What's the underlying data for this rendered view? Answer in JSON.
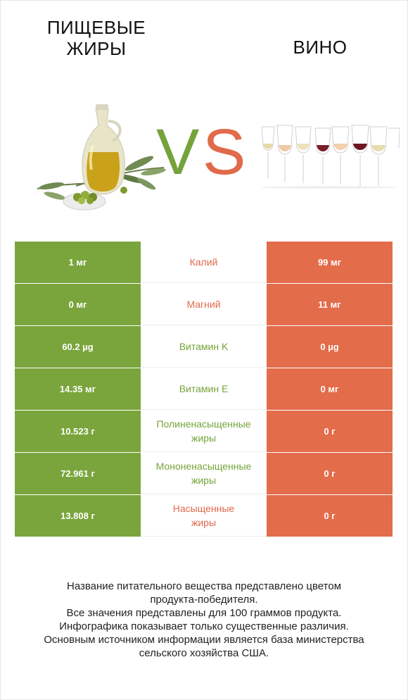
{
  "header": {
    "left_title": "ПИЩЕВЫЕ\nЖИРЫ",
    "right_title": "ВИНО",
    "vs_v": "V",
    "vs_s": "S"
  },
  "colors": {
    "left_accent": "#7aa53c",
    "right_accent": "#e36c4b"
  },
  "rows": [
    {
      "left": "1 мг",
      "label": "Калий",
      "right": "99 мг",
      "winner": "right"
    },
    {
      "left": "0 мг",
      "label": "Магний",
      "right": "11 мг",
      "winner": "right"
    },
    {
      "left": "60.2 µg",
      "label": "Витамин K",
      "right": "0 µg",
      "winner": "left"
    },
    {
      "left": "14.35 мг",
      "label": "Витамин E",
      "right": "0 мг",
      "winner": "left"
    },
    {
      "left": "10.523 г",
      "label": "Полиненасыщенные\nжиры",
      "right": "0 г",
      "winner": "left"
    },
    {
      "left": "72.961 г",
      "label": "Мононенасыщенные\nжиры",
      "right": "0 г",
      "winner": "left"
    },
    {
      "left": "13.808 г",
      "label": "Насыщенные\nжиры",
      "right": "0 г",
      "winner": "right"
    }
  ],
  "footnote": {
    "line1": "Название питательного вещества представлено цветом",
    "line2": "продукта-победителя.",
    "line3": "Все значения представлены для 100 граммов продукта.",
    "line4": "Инфографика показывает только существенные различия.",
    "line5": "Основным источником информации является база министерства",
    "line6": "сельского хозяйства США."
  },
  "images": {
    "left_image": "olive-oil-bottle-with-olives",
    "right_image": "row-of-wine-glasses"
  }
}
